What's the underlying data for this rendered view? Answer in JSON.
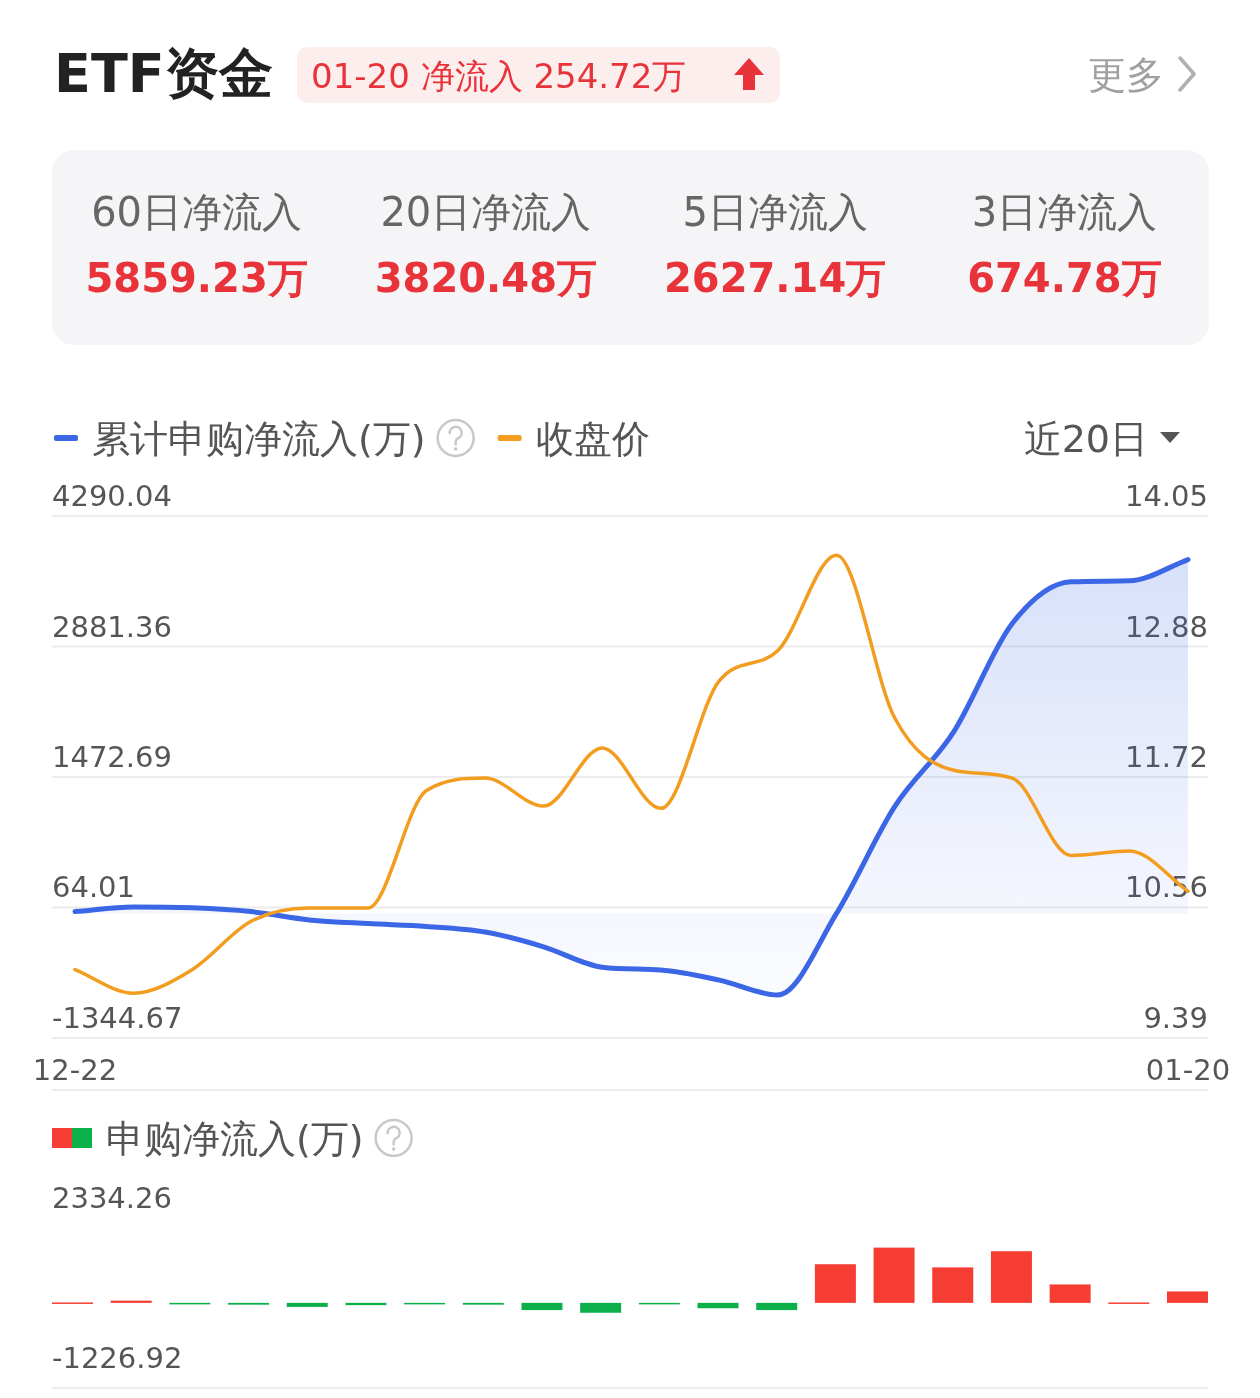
{
  "chart_data": [
    {
      "type": "other",
      "title": "ETF资金",
      "subtitle": "01-20 净流入 254.72万",
      "annotations": [
        "更多",
        "60日净流入",
        "5859.23万",
        "20日净流入",
        "3820.48万",
        "5日净流入",
        "2627.14万",
        "3日净流入",
        "674.78万"
      ]
    },
    {
      "type": "line",
      "categories": [
        "12-22",
        null,
        null,
        null,
        null,
        null,
        null,
        null,
        null,
        null,
        null,
        null,
        null,
        null,
        null,
        null,
        null,
        null,
        null,
        "01-20"
      ],
      "series": [
        {
          "name": "累计申购净流入(万)",
          "type": "area",
          "color": "#3b66e6",
          "values": [
            20,
            70,
            60,
            20,
            -70,
            -110,
            -140,
            -200,
            -360,
            -580,
            -610,
            -720,
            -880,
            0,
            1160,
            1960,
            3130,
            3580,
            3590,
            3820
          ]
        },
        {
          "name": "收盘价",
          "type": "line",
          "color": "#f29d1f",
          "axis": "y2",
          "values": [
            10.0,
            9.79,
            10.0,
            10.43,
            10.55,
            10.55,
            11.6,
            11.71,
            11.46,
            11.98,
            11.44,
            12.58,
            12.85,
            13.7,
            12.24,
            11.78,
            11.71,
            11.02,
            11.06,
            10.7
          ]
        }
      ],
      "ylim": [
        -1344.67,
        4290.04
      ],
      "yticks": [
        -1344.67,
        64.01,
        1472.69,
        2881.36,
        4290.04
      ],
      "y2lim": [
        9.39,
        14.05
      ],
      "y2ticks": [
        9.39,
        10.56,
        11.72,
        12.88,
        14.05
      ],
      "grid": "y",
      "legend": "top left",
      "annotations": [
        "近20日"
      ]
    },
    {
      "type": "bar",
      "title": "申购净流入(万)",
      "categories": [
        null,
        null,
        null,
        null,
        null,
        null,
        null,
        null,
        null,
        null,
        null,
        null,
        null,
        null,
        null,
        null,
        null,
        null,
        null,
        null
      ],
      "values": [
        10,
        50,
        -10,
        -40,
        -90,
        -50,
        -10,
        -40,
        -160,
        -220,
        -10,
        -120,
        -160,
        860,
        1230,
        790,
        1150,
        410,
        10,
        254.72
      ],
      "colors": [
        "#f53d33",
        "#f53d33",
        "#0bb04b",
        "#0bb04b",
        "#0bb04b",
        "#0bb04b",
        "#0bb04b",
        "#0bb04b",
        "#0bb04b",
        "#0bb04b",
        "#0bb04b",
        "#0bb04b",
        "#0bb04b",
        "#f53d33",
        "#f53d33",
        "#f53d33",
        "#f53d33",
        "#f53d33",
        "#f53d33",
        "#f53d33"
      ],
      "ylim": [
        -1226.92,
        2334.26
      ],
      "yticks": [
        -1226.92,
        2334.26
      ]
    }
  ]
}
